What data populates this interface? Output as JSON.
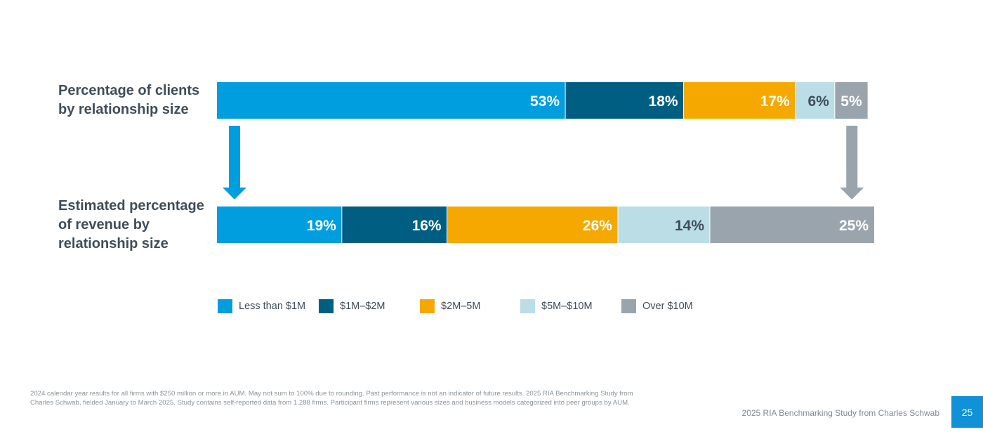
{
  "chart_data": {
    "type": "bar",
    "orientation": "horizontal-stacked-100",
    "categories": [
      "Percentage of clients\nby relationship size",
      "Estimated percentage\nof revenue by\nrelationship size"
    ],
    "series": [
      {
        "name": "Less than $1M",
        "values": [
          53,
          19
        ],
        "labels": [
          "53%",
          "19%"
        ],
        "color": "#009ddf",
        "label_color": "#ffffff"
      },
      {
        "name": "$1M–$2M",
        "values": [
          18,
          16
        ],
        "labels": [
          "18%",
          "16%"
        ],
        "color": "#005e82",
        "label_color": "#ffffff"
      },
      {
        "name": "$2M–5M",
        "values": [
          17,
          26
        ],
        "labels": [
          "17%",
          "26%"
        ],
        "color": "#f5a800",
        "label_color": "#ffffff"
      },
      {
        "name": "$5M–$10M",
        "values": [
          6,
          14
        ],
        "labels": [
          "6%",
          "14%"
        ],
        "color": "#badde6",
        "label_color": "#3f4d5a"
      },
      {
        "name": "Over $10M",
        "values": [
          5,
          25
        ],
        "labels": [
          "5%",
          "25%"
        ],
        "color": "#99a4ad",
        "label_color": "#ffffff"
      }
    ],
    "arrows": [
      {
        "series": "Less than $1M",
        "color": "#009ddf"
      },
      {
        "series": "Over $10M",
        "color": "#99a4ad"
      }
    ],
    "legend_position": "bottom",
    "grid": false
  },
  "footnote": "2024 calendar year results for all firms with $250 million or more in AUM. May not sum to 100% due to rounding. Past performance is not an indicator of future results. 2025 RIA Benchmarking Study from Charles Schwab, fielded January to March 2025. Study contains self-reported data from 1,288 firms. Participant firms represent various sizes and business models categorized into peer groups by AUM.",
  "source": "2025 RIA Benchmarking Study from Charles Schwab",
  "page_number": "25"
}
